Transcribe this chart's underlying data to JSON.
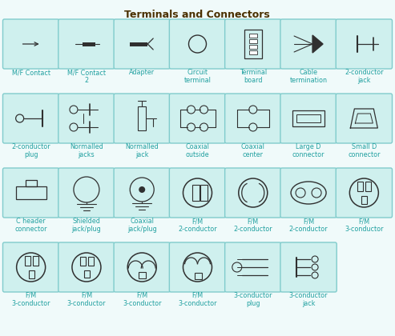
{
  "title": "Terminals and Connectors",
  "title_color": "#4a3000",
  "title_fontsize": 9,
  "bg_color": "#f0fafa",
  "cell_bg": "#cff0ee",
  "cell_edge": "#80cccc",
  "symbol_color": "#303030",
  "label_color": "#20a0a0",
  "label_fontsize": 5.8,
  "cells": [
    {
      "row": 0,
      "col": 0,
      "label": "M/F Contact"
    },
    {
      "row": 0,
      "col": 1,
      "label": "M/F Contact\n2"
    },
    {
      "row": 0,
      "col": 2,
      "label": "Adapter"
    },
    {
      "row": 0,
      "col": 3,
      "label": "Circuit\nterminal"
    },
    {
      "row": 0,
      "col": 4,
      "label": "Terminal\nboard"
    },
    {
      "row": 0,
      "col": 5,
      "label": "Cable\ntermination"
    },
    {
      "row": 0,
      "col": 6,
      "label": "2-conductor\njack"
    },
    {
      "row": 1,
      "col": 0,
      "label": "2-conductor\nplug"
    },
    {
      "row": 1,
      "col": 1,
      "label": "Normalled\njacks"
    },
    {
      "row": 1,
      "col": 2,
      "label": "Normalled\njack"
    },
    {
      "row": 1,
      "col": 3,
      "label": "Coaxial\noutside"
    },
    {
      "row": 1,
      "col": 4,
      "label": "Coaxial\ncenter"
    },
    {
      "row": 1,
      "col": 5,
      "label": "Large D\nconnector"
    },
    {
      "row": 1,
      "col": 6,
      "label": "Small D\nconnector"
    },
    {
      "row": 2,
      "col": 0,
      "label": "C header\nconnector"
    },
    {
      "row": 2,
      "col": 1,
      "label": "Shielded\njack/plug"
    },
    {
      "row": 2,
      "col": 2,
      "label": "Coaxial\njack/plug"
    },
    {
      "row": 2,
      "col": 3,
      "label": "F/M\n2-conductor"
    },
    {
      "row": 2,
      "col": 4,
      "label": "F/M\n2-conductor"
    },
    {
      "row": 2,
      "col": 5,
      "label": "F/M\n2-conductor"
    },
    {
      "row": 2,
      "col": 6,
      "label": "F/M\n3-conductor"
    },
    {
      "row": 3,
      "col": 0,
      "label": "F/M\n3-conductor"
    },
    {
      "row": 3,
      "col": 1,
      "label": "F/M\n3-conductor"
    },
    {
      "row": 3,
      "col": 2,
      "label": "F/M\n3-conductor"
    },
    {
      "row": 3,
      "col": 3,
      "label": "F/M\n3-conductor"
    },
    {
      "row": 3,
      "col": 4,
      "label": "3-conductor\nplug"
    },
    {
      "row": 3,
      "col": 5,
      "label": "3-conductor\njack"
    }
  ]
}
